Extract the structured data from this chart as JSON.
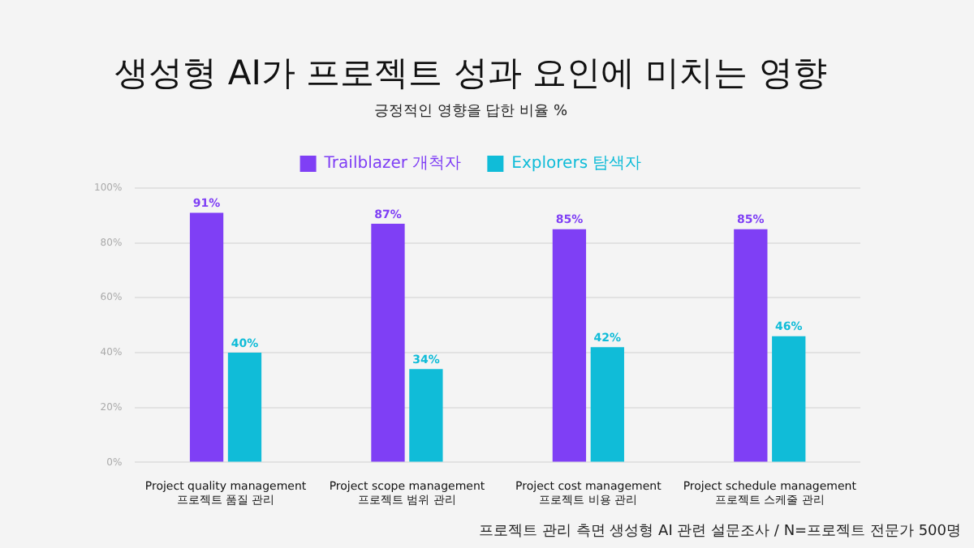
{
  "chart_data": {
    "type": "bar",
    "title": "생성형 AI가 프로젝트 성과 요인에 미치는 영향",
    "subtitle": "긍정적인 영향을 답한 비율 %",
    "categories": [
      "Project quality management\n프로젝트 품질 관리",
      "Project scope management\n프로젝트 범위 관리",
      "Project cost management\n프로젝트 비용 관리",
      "Project schedule management\n프로젝트 스케줄 관리"
    ],
    "series": [
      {
        "name": "Trailblazer 개척자",
        "color": "#7f3ff5",
        "values": [
          91,
          87,
          85,
          85
        ],
        "value_labels": [
          "91%",
          "87%",
          "85%",
          "85%"
        ]
      },
      {
        "name": "Explorers 탐색자",
        "color": "#10bcd8",
        "values": [
          40,
          34,
          42,
          46
        ],
        "value_labels": [
          "40%",
          "34%",
          "42%",
          "46%"
        ]
      }
    ],
    "ylim": [
      0,
      100
    ],
    "yticks": [
      {
        "value": 0,
        "label": "0%"
      },
      {
        "value": 20,
        "label": "20%"
      },
      {
        "value": 40,
        "label": "40%"
      },
      {
        "value": 60,
        "label": "60%"
      },
      {
        "value": 80,
        "label": "80%"
      },
      {
        "value": 100,
        "label": "100%"
      }
    ],
    "grid": "y",
    "legend": "top",
    "annotations": [
      "프로젝트 관리 측면 생성형 AI 관련 설문조사 / N=프로젝트 전문가 500명"
    ]
  }
}
